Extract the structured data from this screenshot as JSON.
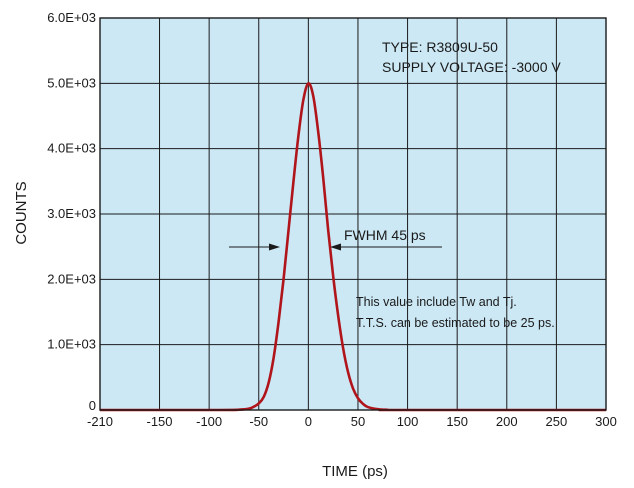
{
  "chart_data": {
    "type": "line",
    "title": "",
    "xlabel": "TIME (ps)",
    "ylabel": "COUNTS",
    "xlim": [
      -210,
      300
    ],
    "ylim": [
      0,
      6000
    ],
    "x_ticks": [
      -210,
      -150,
      -100,
      -50,
      0,
      50,
      100,
      150,
      200,
      250,
      300
    ],
    "x_tick_labels": [
      "-210",
      "-150",
      "-100",
      "-50",
      "0",
      "50",
      "100",
      "150",
      "200",
      "250",
      "300"
    ],
    "y_ticks": [
      0,
      1000,
      2000,
      3000,
      4000,
      5000,
      6000
    ],
    "y_tick_labels": [
      "0",
      "1.0E+03",
      "2.0E+03",
      "3.0E+03",
      "4.0E+03",
      "5.0E+03",
      "6.0E+03"
    ],
    "grid": true,
    "series": [
      {
        "color": "#b0151b",
        "x": [
          -210,
          -90,
          -70,
          -60,
          -55,
          -50,
          -45,
          -40,
          -35,
          -30,
          -25,
          -20,
          -15,
          -10,
          -5,
          0,
          5,
          10,
          15,
          20,
          25,
          30,
          35,
          40,
          45,
          50,
          55,
          60,
          70,
          80,
          90,
          300
        ],
        "y": [
          0,
          0,
          5,
          20,
          50,
          100,
          200,
          420,
          800,
          1350,
          2000,
          2750,
          3500,
          4200,
          4750,
          5000,
          4800,
          4250,
          3550,
          2750,
          2050,
          1450,
          950,
          580,
          330,
          180,
          95,
          45,
          12,
          3,
          0,
          0
        ]
      }
    ],
    "annotations": {
      "type_line": "TYPE: R3809U-50",
      "voltage_line": "SUPPLY VOLTAGE: -3000 V",
      "fwhm": "FWHM 45 ps",
      "note_line1": "This value include Tw and Tj.",
      "note_line2": "T.T.S. can be estimated to be 25 ps."
    },
    "colors": {
      "plot_background": "#cce8f5",
      "grid": "#1a1a1a",
      "curve": "#b0151b"
    }
  }
}
